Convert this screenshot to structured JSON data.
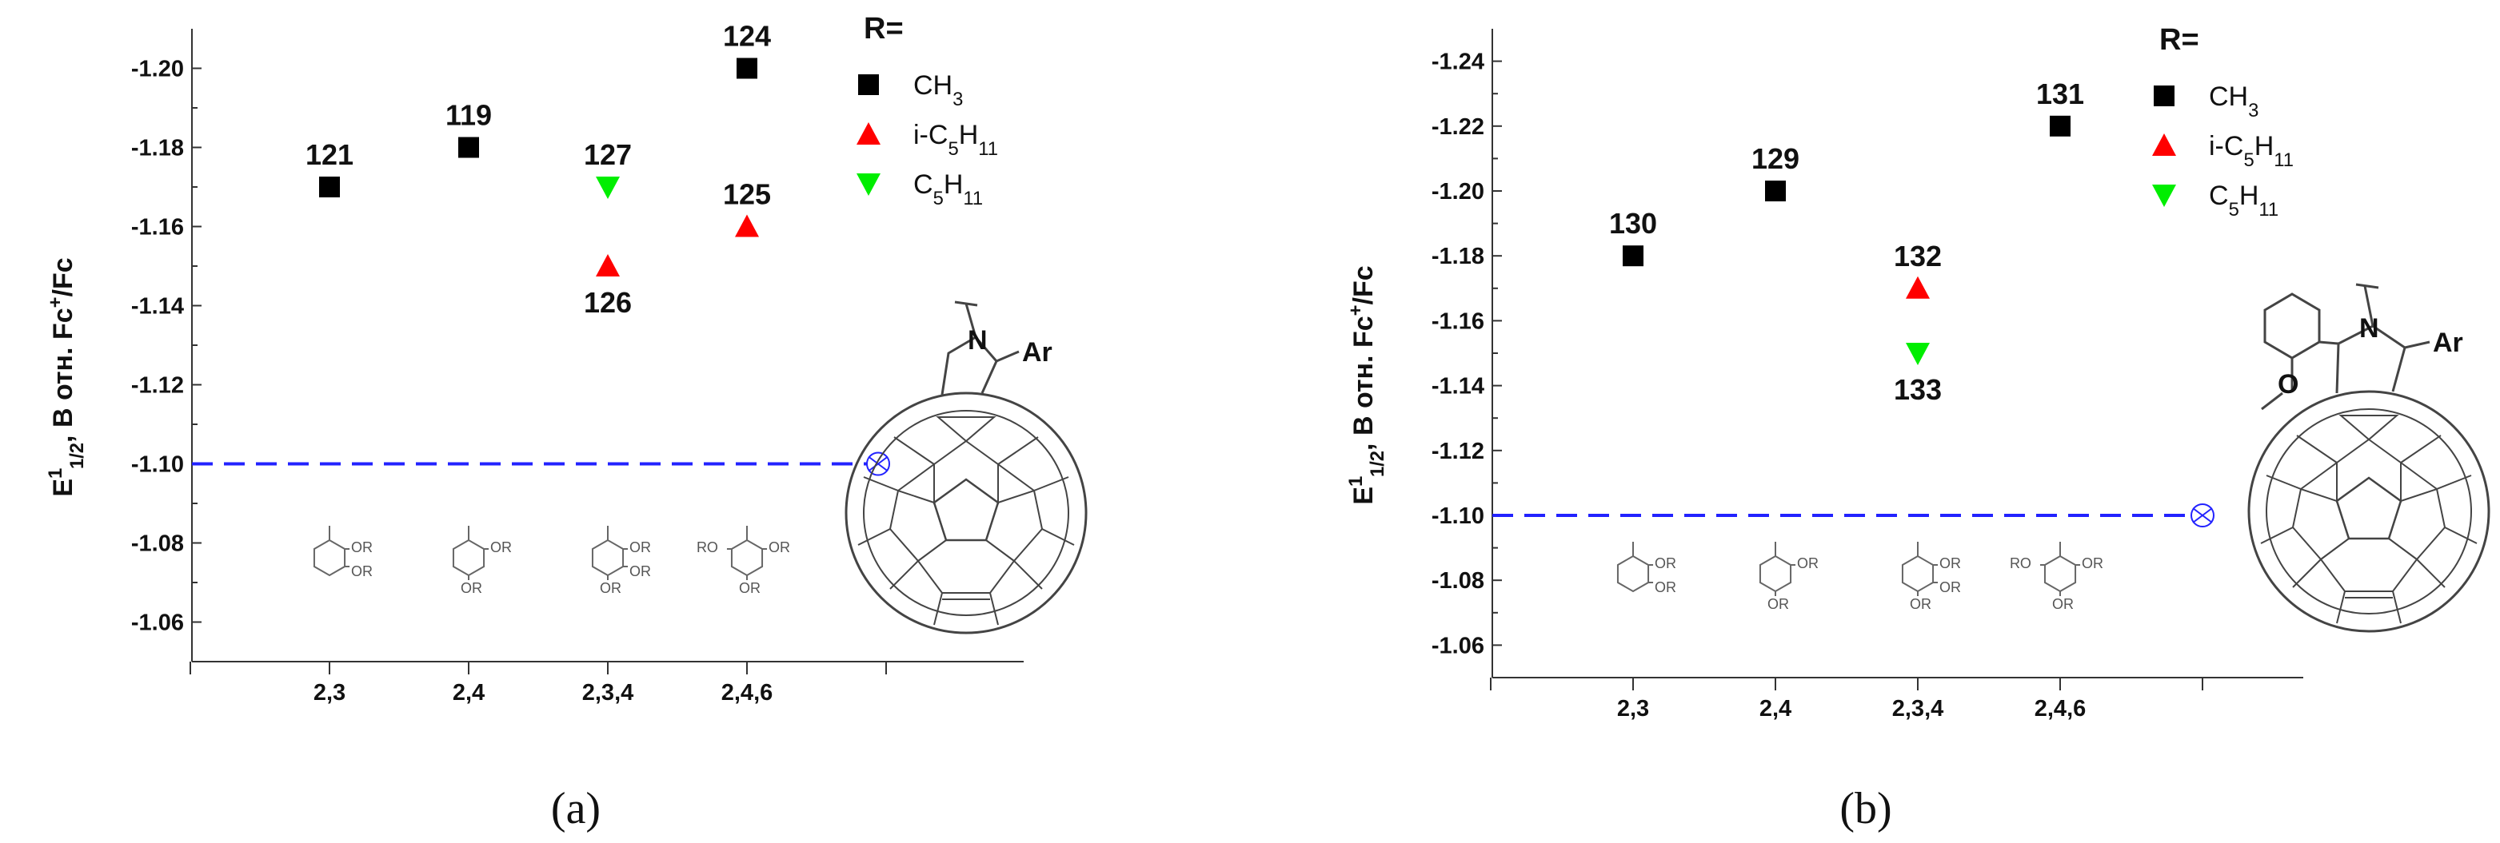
{
  "chart_data": [
    {
      "type": "scatter",
      "panel_label": "(a)",
      "ylabel": "E1/2, B отн. Fc+/Fc",
      "categories": [
        "2,3",
        "2,4",
        "2,3,4",
        "2,4,6"
      ],
      "y_ticks": [
        "-1.20",
        "-1.18",
        "-1.16",
        "-1.14",
        "-1.12",
        "-1.10",
        "-1.08",
        "-1.06"
      ],
      "ylim": [
        -1.05,
        -1.21
      ],
      "legend_title": "R=",
      "series": [
        {
          "name": "CH3",
          "marker": "square",
          "color": "#000000",
          "points": [
            {
              "x": "2,3",
              "y": -1.17,
              "label": "121"
            },
            {
              "x": "2,4",
              "y": -1.18,
              "label": "119"
            },
            {
              "x": "2,4,6",
              "y": -1.2,
              "label": "124"
            }
          ]
        },
        {
          "name": "i-C5H11",
          "marker": "triangle-up",
          "color": "#ff0000",
          "points": [
            {
              "x": "2,3,4",
              "y": -1.15,
              "label": "126"
            },
            {
              "x": "2,4,6",
              "y": -1.16,
              "label": "125"
            }
          ]
        },
        {
          "name": "C5H11",
          "marker": "triangle-down",
          "color": "#00ee00",
          "points": [
            {
              "x": "2,3,4",
              "y": -1.17,
              "label": "127"
            }
          ]
        }
      ],
      "reference_line": {
        "y": -1.1,
        "color": "#2222ff",
        "style": "dashed"
      }
    },
    {
      "type": "scatter",
      "panel_label": "(b)",
      "ylabel": "E1/2, B отн. Fc+/Fc",
      "categories": [
        "2,3",
        "2,4",
        "2,3,4",
        "2,4,6"
      ],
      "y_ticks": [
        "-1.24",
        "-1.22",
        "-1.20",
        "-1.18",
        "-1.16",
        "-1.14",
        "-1.12",
        "-1.10",
        "-1.08",
        "-1.06"
      ],
      "ylim": [
        -1.05,
        -1.25
      ],
      "legend_title": "R=",
      "series": [
        {
          "name": "CH3",
          "marker": "square",
          "color": "#000000",
          "points": [
            {
              "x": "2,3",
              "y": -1.18,
              "label": "130"
            },
            {
              "x": "2,4",
              "y": -1.2,
              "label": "129"
            },
            {
              "x": "2,4,6",
              "y": -1.22,
              "label": "131"
            }
          ]
        },
        {
          "name": "i-C5H11",
          "marker": "triangle-up",
          "color": "#ff0000",
          "points": [
            {
              "x": "2,3,4",
              "y": -1.17,
              "label": "132"
            }
          ]
        },
        {
          "name": "C5H11",
          "marker": "triangle-down",
          "color": "#00ee00",
          "points": [
            {
              "x": "2,3,4",
              "y": -1.15,
              "label": "133"
            }
          ]
        }
      ],
      "reference_line": {
        "y": -1.1,
        "color": "#2222ff",
        "style": "dashed"
      }
    }
  ],
  "structures": {
    "substituent": "OR",
    "substituent_ortho": "RO",
    "fullerene_N": "N",
    "fullerene_Ar": "Ar",
    "fullerene_O": "O"
  }
}
